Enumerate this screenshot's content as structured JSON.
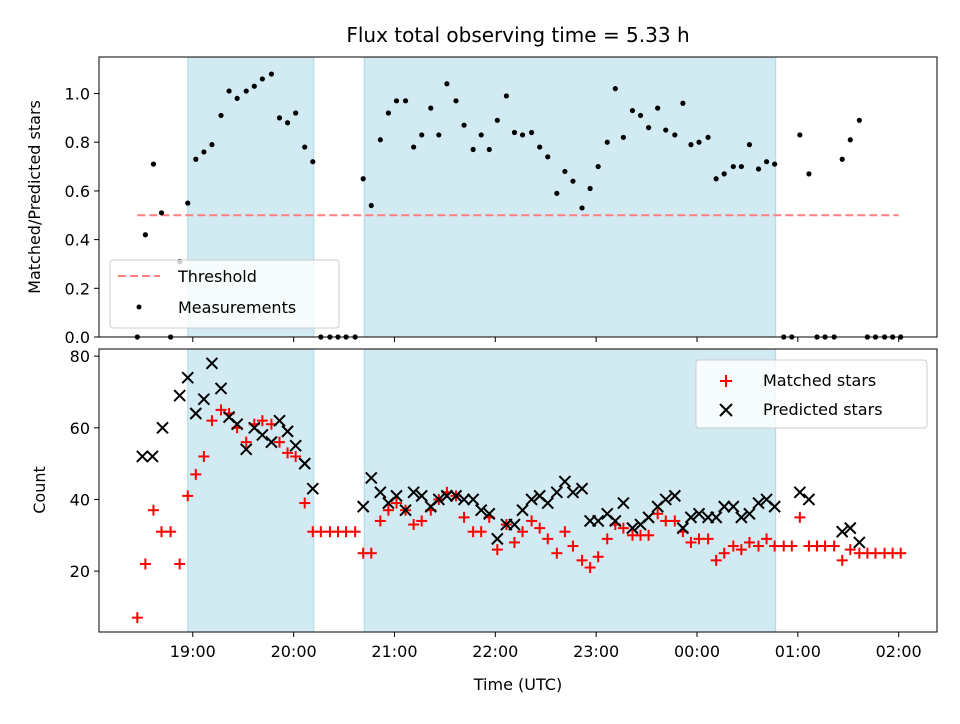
{
  "title": "Flux total observing time = 5.33 h",
  "xlabel": "Time (UTC)",
  "x_ticks": [
    "19:00",
    "20:00",
    "21:00",
    "22:00",
    "23:00",
    "00:00",
    "01:00",
    "02:00"
  ],
  "x_ticks_hours": [
    19,
    20,
    21,
    22,
    23,
    24,
    25,
    26
  ],
  "xlim_hours": [
    18.07,
    26.38
  ],
  "colors": {
    "band": "#add8e6",
    "threshold": "#ff7f7f",
    "measurement": "#000000",
    "matched": "#ff0000",
    "predicted": "#000000"
  },
  "chart_data": [
    {
      "type": "scatter",
      "panel": "top",
      "ylabel": "Matched/Predicted stars",
      "ylim": [
        0,
        1.15
      ],
      "y_ticks": [
        "0.0",
        "0.2",
        "0.4",
        "0.6",
        "0.8",
        "1.0"
      ],
      "y_ticks_values": [
        0,
        0.2,
        0.4,
        0.6,
        0.8,
        1.0
      ],
      "legend": {
        "position": "lower-left",
        "entries": [
          "Threshold",
          "Measurements"
        ]
      },
      "observing_intervals_hours": [
        [
          18.95,
          20.2
        ],
        [
          20.7,
          24.78
        ]
      ],
      "threshold": {
        "name": "Threshold",
        "y": 0.5,
        "x_range_hours": [
          18.45,
          26.0
        ]
      },
      "series": [
        {
          "name": "Measurements",
          "x_hours": [
            18.45,
            18.53,
            18.61,
            18.69,
            18.78,
            18.87,
            18.95,
            19.03,
            19.11,
            19.19,
            19.28,
            19.36,
            19.44,
            19.53,
            19.61,
            19.69,
            19.78,
            19.86,
            19.94,
            20.02,
            20.11,
            20.19,
            20.27,
            20.36,
            20.44,
            20.52,
            20.61,
            20.69,
            20.77,
            20.86,
            20.94,
            21.02,
            21.11,
            21.19,
            21.27,
            21.36,
            21.44,
            21.52,
            21.61,
            21.69,
            21.78,
            21.86,
            21.94,
            22.02,
            22.11,
            22.19,
            22.27,
            22.36,
            22.44,
            22.52,
            22.61,
            22.69,
            22.77,
            22.86,
            22.94,
            23.02,
            23.11,
            23.19,
            23.27,
            23.36,
            23.44,
            23.52,
            23.61,
            23.69,
            23.78,
            23.86,
            23.94,
            24.02,
            24.11,
            24.19,
            24.27,
            24.36,
            24.44,
            24.52,
            24.61,
            24.69,
            24.77,
            24.86,
            24.94,
            25.02,
            25.11,
            25.19,
            25.27,
            25.36,
            25.44,
            25.52,
            25.61,
            25.69,
            25.77,
            25.86,
            25.94,
            26.02
          ],
          "y": [
            0.0,
            0.42,
            0.71,
            0.51,
            0.0,
            0.31,
            0.55,
            0.73,
            0.76,
            0.79,
            0.91,
            1.01,
            0.98,
            1.01,
            1.03,
            1.06,
            1.08,
            0.9,
            0.88,
            0.92,
            0.78,
            0.72,
            0.0,
            0.0,
            0.0,
            0.0,
            0.0,
            0.65,
            0.54,
            0.81,
            0.92,
            0.97,
            0.97,
            0.78,
            0.83,
            0.94,
            0.83,
            1.04,
            0.97,
            0.87,
            0.77,
            0.83,
            0.77,
            0.89,
            0.99,
            0.84,
            0.83,
            0.84,
            0.78,
            0.74,
            0.59,
            0.68,
            0.64,
            0.53,
            0.61,
            0.7,
            0.8,
            1.02,
            0.82,
            0.93,
            0.91,
            0.86,
            0.94,
            0.85,
            0.83,
            0.96,
            0.79,
            0.8,
            0.82,
            0.65,
            0.67,
            0.7,
            0.7,
            0.79,
            0.69,
            0.72,
            0.71,
            0.0,
            0.0,
            0.83,
            0.67,
            0.0,
            0.0,
            0.0,
            0.73,
            0.81,
            0.89,
            0.0,
            0.0,
            0.0,
            0.0,
            0.0
          ]
        }
      ]
    },
    {
      "type": "scatter",
      "panel": "bottom",
      "ylabel": "Count",
      "ylim": [
        3,
        82
      ],
      "y_ticks": [
        "20",
        "40",
        "60",
        "80"
      ],
      "y_ticks_values": [
        20,
        40,
        60,
        80
      ],
      "legend": {
        "position": "top-right",
        "entries": [
          "Matched stars",
          "Predicted stars"
        ]
      },
      "observing_intervals_hours": [
        [
          18.95,
          20.2
        ],
        [
          20.7,
          24.78
        ]
      ],
      "series": [
        {
          "name": "Matched stars",
          "marker": "plus",
          "x_hours": [
            18.45,
            18.53,
            18.61,
            18.69,
            18.78,
            18.87,
            18.95,
            19.03,
            19.11,
            19.19,
            19.28,
            19.36,
            19.44,
            19.53,
            19.61,
            19.69,
            19.78,
            19.86,
            19.94,
            20.02,
            20.11,
            20.19,
            20.27,
            20.36,
            20.44,
            20.52,
            20.61,
            20.69,
            20.77,
            20.86,
            20.94,
            21.02,
            21.11,
            21.19,
            21.27,
            21.36,
            21.44,
            21.52,
            21.61,
            21.69,
            21.78,
            21.86,
            21.94,
            22.02,
            22.11,
            22.19,
            22.27,
            22.36,
            22.44,
            22.52,
            22.61,
            22.69,
            22.77,
            22.86,
            22.94,
            23.02,
            23.11,
            23.19,
            23.27,
            23.36,
            23.44,
            23.52,
            23.61,
            23.69,
            23.78,
            23.86,
            23.94,
            24.02,
            24.11,
            24.19,
            24.27,
            24.36,
            24.44,
            24.52,
            24.61,
            24.69,
            24.77,
            24.86,
            24.94,
            25.02,
            25.11,
            25.19,
            25.27,
            25.36,
            25.44,
            25.52,
            25.61,
            25.69,
            25.77,
            25.86,
            25.94,
            26.02
          ],
          "y": [
            7,
            22,
            37,
            31,
            31,
            22,
            41,
            47,
            52,
            62,
            65,
            64,
            60,
            56,
            61,
            62,
            61,
            56,
            53,
            52,
            39,
            31,
            31,
            31,
            31,
            31,
            31,
            25,
            25,
            34,
            37,
            39,
            37,
            33,
            34,
            37,
            40,
            42,
            41,
            35,
            31,
            31,
            35,
            26,
            33,
            28,
            31,
            34,
            32,
            29,
            25,
            31,
            27,
            23,
            21,
            24,
            29,
            33,
            32,
            30,
            30,
            30,
            36,
            34,
            34,
            31,
            28,
            29,
            29,
            23,
            25,
            27,
            26,
            28,
            27,
            29,
            27,
            27,
            27,
            35,
            27,
            27,
            27,
            27,
            23,
            26,
            25,
            25,
            25,
            25,
            25,
            25
          ]
        },
        {
          "name": "Predicted stars",
          "marker": "x",
          "x_hours": [
            18.5,
            18.6,
            18.7,
            18.87,
            18.95,
            19.03,
            19.11,
            19.19,
            19.28,
            19.36,
            19.44,
            19.53,
            19.61,
            19.69,
            19.78,
            19.86,
            19.94,
            20.02,
            20.11,
            20.19,
            20.69,
            20.77,
            20.86,
            20.94,
            21.02,
            21.11,
            21.19,
            21.27,
            21.36,
            21.44,
            21.52,
            21.61,
            21.69,
            21.78,
            21.86,
            21.94,
            22.02,
            22.11,
            22.19,
            22.27,
            22.36,
            22.44,
            22.52,
            22.61,
            22.69,
            22.77,
            22.86,
            22.94,
            23.02,
            23.11,
            23.19,
            23.27,
            23.36,
            23.44,
            23.52,
            23.61,
            23.69,
            23.78,
            23.86,
            23.94,
            24.02,
            24.11,
            24.19,
            24.27,
            24.36,
            24.44,
            24.52,
            24.61,
            24.69,
            24.77,
            25.02,
            25.11,
            25.44,
            25.52,
            25.61
          ],
          "y": [
            52,
            52,
            60,
            69,
            74,
            64,
            68,
            78,
            71,
            63,
            61,
            54,
            60,
            58,
            56,
            62,
            59,
            55,
            50,
            43,
            38,
            46,
            42,
            39,
            41,
            37,
            42,
            41,
            38,
            40,
            41,
            41,
            40,
            40,
            37,
            36,
            29,
            33,
            33,
            37,
            40,
            41,
            39,
            42,
            45,
            42,
            43,
            34,
            34,
            36,
            34,
            39,
            32,
            33,
            35,
            38,
            40,
            41,
            32,
            35,
            36,
            35,
            35,
            38,
            38,
            35,
            36,
            39,
            40,
            38,
            42,
            40,
            31,
            32,
            28
          ]
        }
      ]
    }
  ]
}
